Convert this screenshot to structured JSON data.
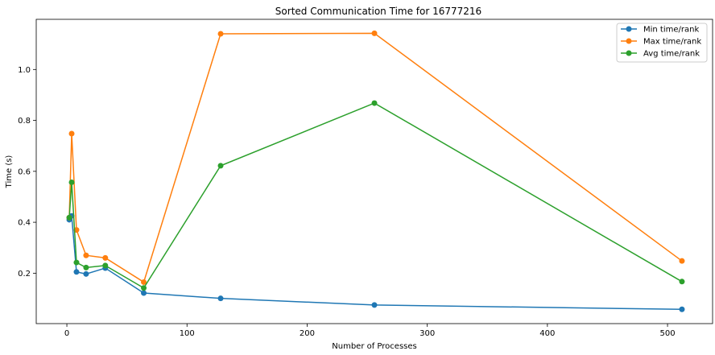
{
  "chart_data": {
    "type": "line",
    "title": "Sorted Communication Time for 16777216",
    "xlabel": "Number of Processes",
    "ylabel": "Time (s)",
    "xlim": [
      -25.5,
      537.5
    ],
    "ylim": [
      0.002,
      1.197
    ],
    "xticks": [
      0,
      100,
      200,
      300,
      400,
      500
    ],
    "yticks": [
      0.2,
      0.4,
      0.6,
      0.8,
      1.0
    ],
    "ytick_labels": [
      "0.2",
      "0.4",
      "0.6",
      "0.8",
      "1.0"
    ],
    "legend_position": "top-right",
    "grid": false,
    "x": [
      2,
      4,
      8,
      16,
      32,
      64,
      128,
      256,
      512
    ],
    "series": [
      {
        "name": "Min time/rank",
        "color": "#1f77b4",
        "values": [
          0.41,
          0.425,
          0.205,
          0.197,
          0.22,
          0.122,
          0.101,
          0.075,
          0.058
        ]
      },
      {
        "name": "Max time/rank",
        "color": "#ff7f0e",
        "values": [
          0.418,
          0.748,
          0.37,
          0.27,
          0.26,
          0.165,
          1.14,
          1.142,
          0.248
        ]
      },
      {
        "name": "Avg time/rank",
        "color": "#2ca02c",
        "values": [
          0.418,
          0.557,
          0.242,
          0.222,
          0.23,
          0.142,
          0.622,
          0.868,
          0.167
        ]
      }
    ]
  }
}
